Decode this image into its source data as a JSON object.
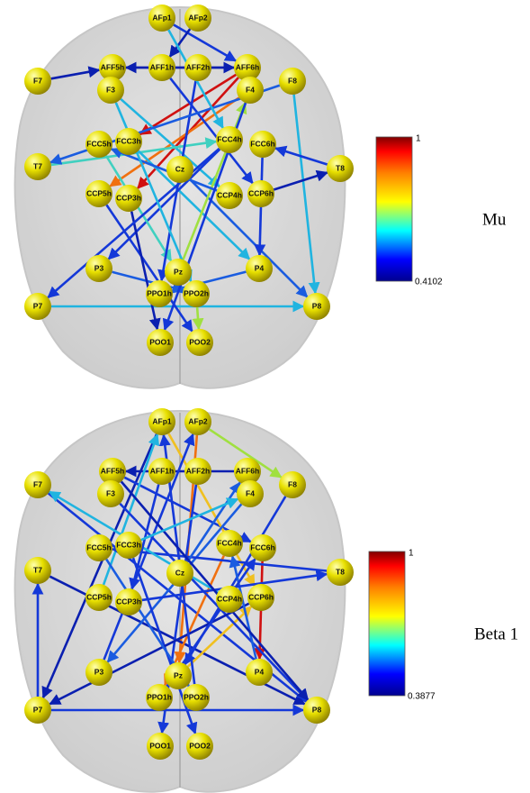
{
  "nodes": [
    {
      "label": "AFp1"
    },
    {
      "label": "AFp2"
    },
    {
      "label": "AFF5h"
    },
    {
      "label": "AFF1h"
    },
    {
      "label": "AFF2h"
    },
    {
      "label": "AFF6h"
    },
    {
      "label": "F7"
    },
    {
      "label": "F3"
    },
    {
      "label": "F4"
    },
    {
      "label": "F8"
    },
    {
      "label": "FCC5h"
    },
    {
      "label": "FCC3h"
    },
    {
      "label": "FCC4h"
    },
    {
      "label": "FCC6h"
    },
    {
      "label": "T7"
    },
    {
      "label": "Cz"
    },
    {
      "label": "T8"
    },
    {
      "label": "CCP5h"
    },
    {
      "label": "CCP3h"
    },
    {
      "label": "CCP4h"
    },
    {
      "label": "CCP6h"
    },
    {
      "label": "P3"
    },
    {
      "label": "Pz"
    },
    {
      "label": "P4"
    },
    {
      "label": "P7"
    },
    {
      "label": "PPO1h"
    },
    {
      "label": "PPO2h"
    },
    {
      "label": "P8"
    },
    {
      "label": "POO1"
    },
    {
      "label": "POO2"
    }
  ],
  "panels": [
    {
      "label": "Mu",
      "colorbar": {
        "max": 1,
        "min": 0.4102
      }
    },
    {
      "label": "Beta 1",
      "colorbar": {
        "max": 1,
        "min": 0.3877
      }
    }
  ]
}
